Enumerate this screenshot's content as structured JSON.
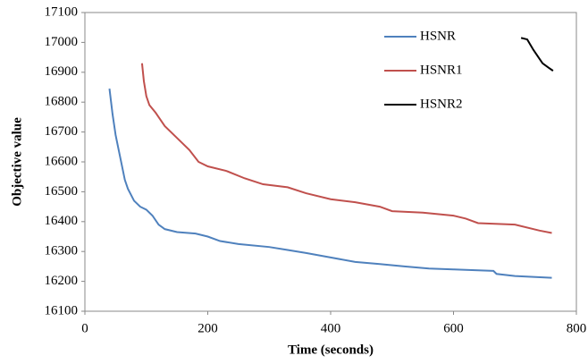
{
  "chart_data": {
    "type": "line",
    "x_label": "Time (seconds)",
    "y_label": "Objective value",
    "xlim": [
      0,
      800
    ],
    "xticks": [
      0,
      200,
      400,
      600,
      800
    ],
    "ylim": [
      16100,
      17100
    ],
    "yticks": [
      16100,
      16200,
      16300,
      16400,
      16500,
      16600,
      16700,
      16800,
      16900,
      17000,
      17100
    ],
    "legend": "upper right",
    "grid": false,
    "series": [
      {
        "name": "HSNR",
        "color": "#4f81bd",
        "x": [
          40,
          45,
          50,
          55,
          60,
          65,
          70,
          80,
          90,
          100,
          110,
          120,
          130,
          150,
          180,
          200,
          220,
          250,
          300,
          330,
          360,
          400,
          440,
          480,
          520,
          560,
          600,
          640,
          665,
          670,
          700,
          730,
          760
        ],
        "values": [
          16845,
          16760,
          16690,
          16640,
          16590,
          16540,
          16510,
          16470,
          16450,
          16440,
          16420,
          16390,
          16375,
          16365,
          16360,
          16350,
          16335,
          16325,
          16315,
          16305,
          16295,
          16280,
          16265,
          16258,
          16250,
          16243,
          16240,
          16237,
          16235,
          16225,
          16218,
          16215,
          16212
        ]
      },
      {
        "name": "HSNR1",
        "color": "#c0504d",
        "x": [
          93,
          96,
          100,
          105,
          115,
          130,
          150,
          170,
          185,
          200,
          230,
          260,
          290,
          330,
          360,
          400,
          440,
          480,
          500,
          550,
          600,
          620,
          640,
          700,
          740,
          760
        ],
        "values": [
          16930,
          16870,
          16820,
          16790,
          16765,
          16720,
          16680,
          16640,
          16600,
          16585,
          16570,
          16545,
          16525,
          16515,
          16495,
          16475,
          16465,
          16450,
          16435,
          16430,
          16420,
          16410,
          16395,
          16390,
          16370,
          16362
        ]
      },
      {
        "name": "HSNR2",
        "color": "#000000",
        "x": [
          710,
          720,
          730,
          740,
          745,
          755,
          762
        ],
        "values": [
          17015,
          17010,
          16975,
          16945,
          16930,
          16915,
          16905
        ]
      }
    ]
  }
}
